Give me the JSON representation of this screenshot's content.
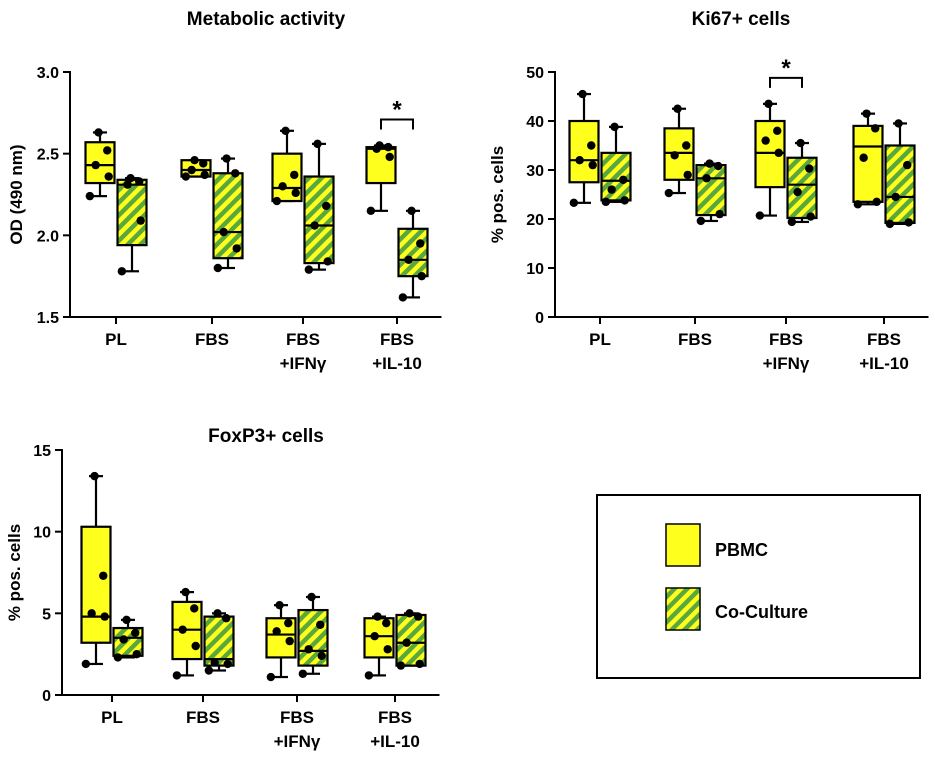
{
  "colors": {
    "pbmc": "#ffff1e",
    "stripe_green": "#5aa83c",
    "stroke": "#000000"
  },
  "legend": {
    "items": [
      {
        "label": "PBMC",
        "pattern": "solid"
      },
      {
        "label": "Co-Culture",
        "pattern": "hatched"
      }
    ]
  },
  "chart_data": [
    {
      "type": "box",
      "title": "Metabolic activity",
      "ylabel": "OD (490 nm)",
      "ylim": [
        1.5,
        3.0
      ],
      "yticks": [
        "1.5",
        "2.0",
        "2.5",
        "3.0"
      ],
      "categories": [
        [
          "PL"
        ],
        [
          "FBS"
        ],
        [
          "FBS",
          "+IFNγ"
        ],
        [
          "FBS",
          "+IL-10"
        ]
      ],
      "series": [
        {
          "name": "PBMC",
          "boxes": [
            {
              "min": 2.24,
              "q1": 2.32,
              "median": 2.43,
              "q3": 2.57,
              "max": 2.63,
              "points": [
                2.24,
                2.36,
                2.43,
                2.52,
                2.63
              ]
            },
            {
              "min": 2.36,
              "q1": 2.36,
              "median": 2.4,
              "q3": 2.46,
              "max": 2.46,
              "points": [
                2.36,
                2.37,
                2.4,
                2.44,
                2.46
              ]
            },
            {
              "min": 2.21,
              "q1": 2.21,
              "median": 2.29,
              "q3": 2.5,
              "max": 2.64,
              "points": [
                2.21,
                2.26,
                2.3,
                2.37,
                2.64
              ]
            },
            {
              "min": 2.15,
              "q1": 2.32,
              "median": 2.53,
              "q3": 2.54,
              "max": 2.55,
              "points": [
                2.15,
                2.48,
                2.53,
                2.54,
                2.55
              ]
            }
          ]
        },
        {
          "name": "Co-Culture",
          "boxes": [
            {
              "min": 1.78,
              "q1": 1.94,
              "median": 2.31,
              "q3": 2.34,
              "max": 2.35,
              "points": [
                1.78,
                2.09,
                2.31,
                2.33,
                2.35
              ]
            },
            {
              "min": 1.8,
              "q1": 1.86,
              "median": 2.02,
              "q3": 2.38,
              "max": 2.47,
              "points": [
                1.8,
                1.92,
                2.02,
                2.38,
                2.47
              ]
            },
            {
              "min": 1.79,
              "q1": 1.83,
              "median": 2.06,
              "q3": 2.36,
              "max": 2.56,
              "points": [
                1.79,
                1.84,
                2.06,
                2.18,
                2.56
              ]
            },
            {
              "min": 1.62,
              "q1": 1.75,
              "median": 1.85,
              "q3": 2.04,
              "max": 2.15,
              "points": [
                1.62,
                1.75,
                1.85,
                1.95,
                2.15
              ]
            }
          ]
        }
      ],
      "significance": [
        {
          "category": 3,
          "label": "*"
        }
      ]
    },
    {
      "type": "box",
      "title": "Ki67+ cells",
      "ylabel": "% pos. cells",
      "ylim": [
        0,
        50
      ],
      "yticks": [
        "0",
        "10",
        "20",
        "30",
        "40",
        "50"
      ],
      "categories": [
        [
          "PL"
        ],
        [
          "FBS"
        ],
        [
          "FBS",
          "+IFNγ"
        ],
        [
          "FBS",
          "+IL-10"
        ]
      ],
      "series": [
        {
          "name": "PBMC",
          "boxes": [
            {
              "min": 23.3,
              "q1": 27.5,
              "median": 32.0,
              "q3": 40.0,
              "max": 45.5,
              "points": [
                23.3,
                31.0,
                32.0,
                35.0,
                45.5
              ]
            },
            {
              "min": 25.3,
              "q1": 28.0,
              "median": 33.5,
              "q3": 38.5,
              "max": 42.5,
              "points": [
                25.3,
                29.0,
                33.0,
                35.0,
                42.5
              ]
            },
            {
              "min": 20.7,
              "q1": 26.5,
              "median": 33.5,
              "q3": 40.0,
              "max": 43.5,
              "points": [
                20.7,
                33.5,
                36.0,
                38.0,
                43.5
              ]
            },
            {
              "min": 23.0,
              "q1": 23.5,
              "median": 34.8,
              "q3": 39.0,
              "max": 41.5,
              "points": [
                23.0,
                23.5,
                32.5,
                38.5,
                41.5
              ]
            }
          ]
        },
        {
          "name": "Co-Culture",
          "boxes": [
            {
              "min": 23.5,
              "q1": 23.8,
              "median": 27.8,
              "q3": 33.5,
              "max": 38.8,
              "points": [
                23.5,
                23.8,
                26.0,
                28.0,
                38.8
              ]
            },
            {
              "min": 19.6,
              "q1": 20.8,
              "median": 28.3,
              "q3": 31.0,
              "max": 31.3,
              "points": [
                19.6,
                21.0,
                28.3,
                30.8,
                31.3
              ]
            },
            {
              "min": 19.4,
              "q1": 20.2,
              "median": 27.0,
              "q3": 32.5,
              "max": 35.5,
              "points": [
                19.4,
                20.5,
                25.5,
                30.3,
                35.5
              ]
            },
            {
              "min": 19.0,
              "q1": 19.2,
              "median": 24.5,
              "q3": 35.0,
              "max": 39.5,
              "points": [
                19.0,
                19.3,
                24.5,
                31.0,
                39.5
              ]
            }
          ]
        }
      ],
      "significance": [
        {
          "category": 2,
          "label": "*"
        }
      ]
    },
    {
      "type": "box",
      "title": "FoxP3+ cells",
      "ylabel": "% pos. cells",
      "ylim": [
        0,
        15
      ],
      "yticks": [
        "0",
        "5",
        "10",
        "15"
      ],
      "categories": [
        [
          "PL"
        ],
        [
          "FBS"
        ],
        [
          "FBS",
          "+IFNγ"
        ],
        [
          "FBS",
          "+IL-10"
        ]
      ],
      "series": [
        {
          "name": "PBMC",
          "boxes": [
            {
              "min": 1.9,
              "q1": 3.2,
              "median": 4.8,
              "q3": 10.3,
              "max": 13.4,
              "points": [
                1.9,
                4.8,
                5.0,
                7.3,
                13.4
              ]
            },
            {
              "min": 1.2,
              "q1": 2.2,
              "median": 4.0,
              "q3": 5.7,
              "max": 6.3,
              "points": [
                1.2,
                3.0,
                4.0,
                5.3,
                6.3
              ]
            },
            {
              "min": 1.1,
              "q1": 2.3,
              "median": 3.7,
              "q3": 4.7,
              "max": 5.5,
              "points": [
                1.1,
                3.3,
                3.9,
                4.4,
                5.5
              ]
            },
            {
              "min": 1.2,
              "q1": 2.3,
              "median": 3.6,
              "q3": 4.7,
              "max": 4.8,
              "points": [
                1.2,
                2.8,
                3.6,
                4.4,
                4.8
              ]
            }
          ]
        },
        {
          "name": "Co-Culture",
          "boxes": [
            {
              "min": 2.3,
              "q1": 2.4,
              "median": 3.5,
              "q3": 4.1,
              "max": 4.6,
              "points": [
                2.3,
                2.5,
                3.4,
                3.8,
                4.6
              ]
            },
            {
              "min": 1.5,
              "q1": 1.8,
              "median": 2.2,
              "q3": 4.8,
              "max": 5.0,
              "points": [
                1.5,
                1.9,
                2.0,
                4.7,
                5.0
              ]
            },
            {
              "min": 1.3,
              "q1": 1.8,
              "median": 2.7,
              "q3": 5.2,
              "max": 6.0,
              "points": [
                1.3,
                2.4,
                2.8,
                4.3,
                6.0
              ]
            },
            {
              "min": 1.8,
              "q1": 1.8,
              "median": 3.2,
              "q3": 4.9,
              "max": 5.0,
              "points": [
                1.8,
                1.9,
                3.2,
                4.8,
                5.0
              ]
            }
          ]
        }
      ],
      "significance": []
    }
  ]
}
